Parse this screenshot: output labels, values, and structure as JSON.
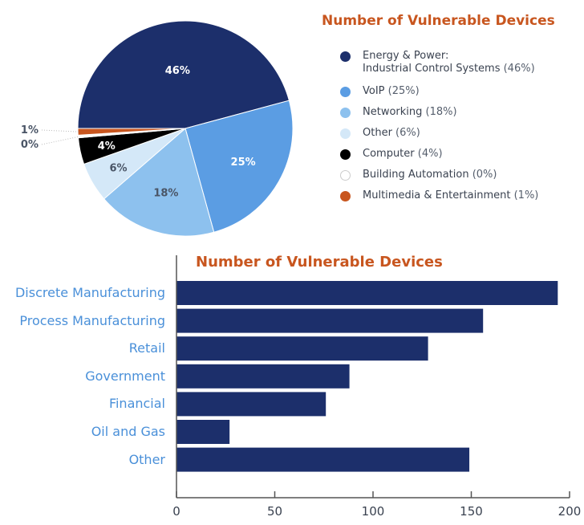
{
  "chart_data": [
    {
      "type": "pie",
      "title": "Number of Vulnerable Devices",
      "slices": [
        {
          "label": "Energy & Power:",
          "label2": "Industrial Control Systems",
          "pct_text": "(46%)",
          "value": 46,
          "data_label": "46%",
          "color": "#1c2f6b",
          "label_color": "#ffffff"
        },
        {
          "label": "VoIP",
          "pct_text": "(25%)",
          "value": 25,
          "data_label": "25%",
          "color": "#5b9de3",
          "label_color": "#ffffff"
        },
        {
          "label": "Networking",
          "pct_text": "(18%)",
          "value": 18,
          "data_label": "18%",
          "color": "#8dc1ee",
          "label_color": "#4a5566"
        },
        {
          "label": "Other",
          "pct_text": "(6%)",
          "value": 6,
          "data_label": "6%",
          "color": "#d4e8f8",
          "label_color": "#4a5566"
        },
        {
          "label": "Computer",
          "pct_text": "(4%)",
          "value": 4,
          "data_label": "4%",
          "color": "#000000",
          "label_color": "#ffffff"
        },
        {
          "label": "Building Automation",
          "pct_text": "(0%)",
          "value": 0.4,
          "data_label": "0%",
          "color": "#ffffff",
          "label_color": "#4a5566"
        },
        {
          "label": "Multimedia & Entertainment",
          "pct_text": "(1%)",
          "value": 1,
          "data_label": "1%",
          "color": "#c8561f",
          "label_color": "#4a5566"
        }
      ],
      "legend_placement": "right"
    },
    {
      "type": "bar",
      "orientation": "horizontal",
      "title": "Number of Vulnerable Devices",
      "categories": [
        "Discrete Manufacturing",
        "Process Manufacturing",
        "Retail",
        "Government",
        "Financial",
        "Oil and Gas",
        "Other"
      ],
      "values": [
        194,
        156,
        128,
        88,
        76,
        27,
        149
      ],
      "xlim": [
        0,
        200
      ],
      "xticks": [
        "0",
        "50",
        "100",
        "150",
        "200"
      ],
      "bar_color": "#1c2f6b",
      "grid": false
    }
  ]
}
